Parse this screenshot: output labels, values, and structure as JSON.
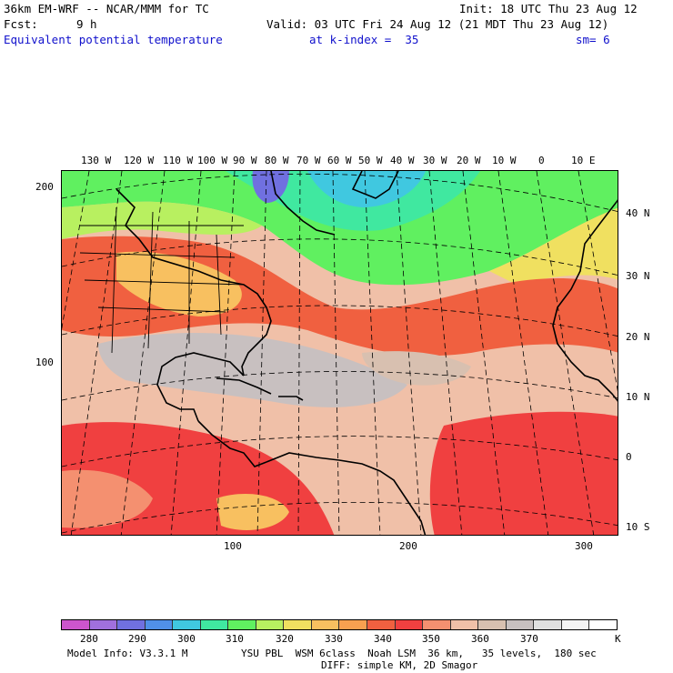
{
  "header": {
    "model_title": "36km EM-WRF -- NCAR/MMM for TC",
    "init": "Init: 18 UTC Thu 23 Aug 12",
    "fcst_label": "Fcst:",
    "fcst_value": "9 h",
    "valid": "Valid: 03 UTC Fri 24 Aug 12 (21 MDT Thu 23 Aug 12)",
    "field": "Equivalent potential temperature",
    "level": "at k-index =  35",
    "smoothing": "sm= 6"
  },
  "map": {
    "lon_labels": [
      "130 W",
      "120 W",
      "110 W",
      "100 W",
      "90 W",
      "80 W",
      "70 W",
      "60 W",
      "50 W",
      "40 W",
      "30 W",
      "20 W",
      "10 W",
      "0",
      "10 E"
    ],
    "lat_labels": [
      "40 N",
      "30 N",
      "20 N",
      "10 N",
      "0",
      "10 S"
    ],
    "grid_left_labels": [
      "200",
      "100"
    ],
    "grid_bottom_labels": [
      "100",
      "200",
      "300"
    ]
  },
  "colorbar": {
    "colors": [
      "#cc55cc",
      "#a070dd",
      "#7070e0",
      "#5090e8",
      "#40c8e0",
      "#40e8a0",
      "#60f060",
      "#b8f060",
      "#f0e060",
      "#f8c060",
      "#f8a050",
      "#f06040",
      "#f04040",
      "#f49070",
      "#f0c0a8",
      "#d8c0b0",
      "#c8c0c0",
      "#e0e0e0",
      "#f4f4f4",
      "#ffffff"
    ],
    "tick_labels": [
      "280",
      "290",
      "300",
      "310",
      "320",
      "330",
      "340",
      "350",
      "360",
      "370"
    ],
    "unit": "K"
  },
  "footer": {
    "model_info": "Model Info: V3.3.1 M",
    "physics": "YSU PBL  WSM 6class  Noah LSM  36 km,   35 levels,  180 sec",
    "diffusion": "DIFF: simple KM, 2D Smagor"
  }
}
